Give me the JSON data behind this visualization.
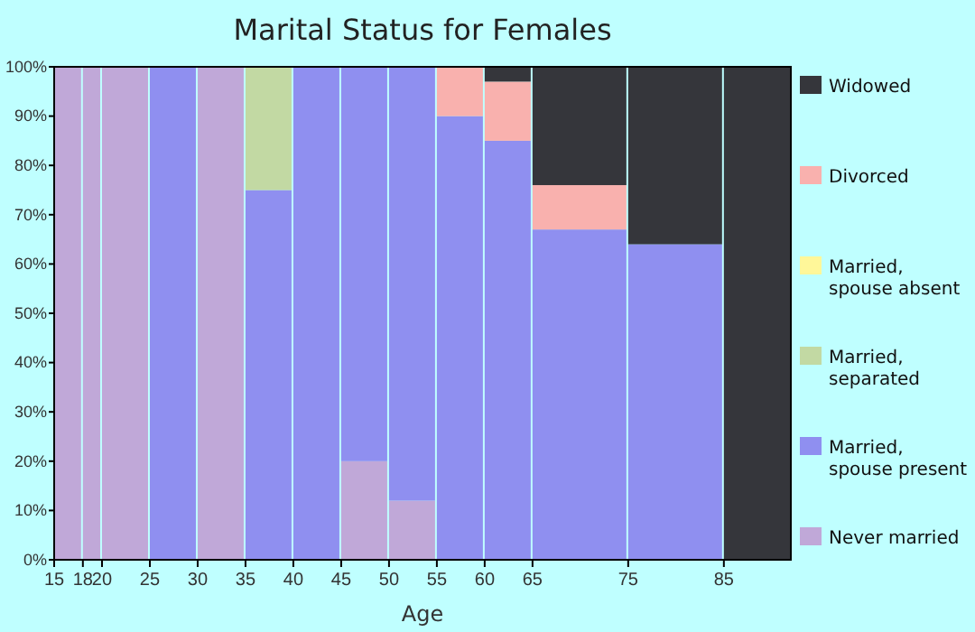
{
  "chart_data": {
    "type": "bar",
    "stacked": true,
    "title": "Marital Status for Females",
    "xlabel": "Age",
    "x": [
      16.5,
      19,
      22.5,
      27.5,
      32.5,
      37.5,
      42.5,
      47.5,
      52.5,
      57.5,
      62.5,
      70,
      80,
      88.5
    ],
    "xlim": [
      15,
      92
    ],
    "xticks": [
      15,
      18,
      20,
      25,
      30,
      35,
      40,
      45,
      50,
      55,
      60,
      65,
      75,
      85
    ],
    "ylim": [
      0,
      100
    ],
    "yticks": [
      {
        "value": 0,
        "label": "0%"
      },
      {
        "value": 10,
        "label": "10%"
      },
      {
        "value": 20,
        "label": "20%"
      },
      {
        "value": 30,
        "label": "30%"
      },
      {
        "value": 40,
        "label": "40%"
      },
      {
        "value": 50,
        "label": "50%"
      },
      {
        "value": 60,
        "label": "60%"
      },
      {
        "value": 70,
        "label": "70%"
      },
      {
        "value": 80,
        "label": "80%"
      },
      {
        "value": 90,
        "label": "90%"
      },
      {
        "value": 100,
        "label": "100%"
      }
    ],
    "legend": "right",
    "grid": false,
    "series": [
      {
        "name": "Never married",
        "color": "#c0a8d8",
        "values": [
          100,
          100,
          100,
          0,
          100,
          0,
          0,
          20,
          12,
          0,
          0,
          0,
          0,
          0
        ]
      },
      {
        "name": "Married,\nspouse present",
        "color": "#8f8ff0",
        "values": [
          0,
          0,
          0,
          100,
          0,
          75,
          100,
          80,
          88,
          90,
          85,
          67,
          64,
          0
        ]
      },
      {
        "name": "Married,\nseparated",
        "color": "#c2d9a3",
        "values": [
          0,
          0,
          0,
          0,
          0,
          25,
          0,
          0,
          0,
          0,
          0,
          0,
          0,
          0
        ]
      },
      {
        "name": "Married,\nspouse absent",
        "color": "#fff799",
        "values": [
          0,
          0,
          0,
          0,
          0,
          0,
          0,
          0,
          0,
          0,
          0,
          0,
          0,
          0
        ]
      },
      {
        "name": "Divorced",
        "color": "#f9b1ae",
        "values": [
          0,
          0,
          0,
          0,
          0,
          0,
          0,
          0,
          0,
          10,
          12,
          9,
          0,
          0
        ]
      },
      {
        "name": "Widowed",
        "color": "#35363b",
        "values": [
          0,
          0,
          0,
          0,
          0,
          0,
          0,
          0,
          0,
          0,
          3,
          24,
          36,
          100
        ]
      }
    ]
  }
}
